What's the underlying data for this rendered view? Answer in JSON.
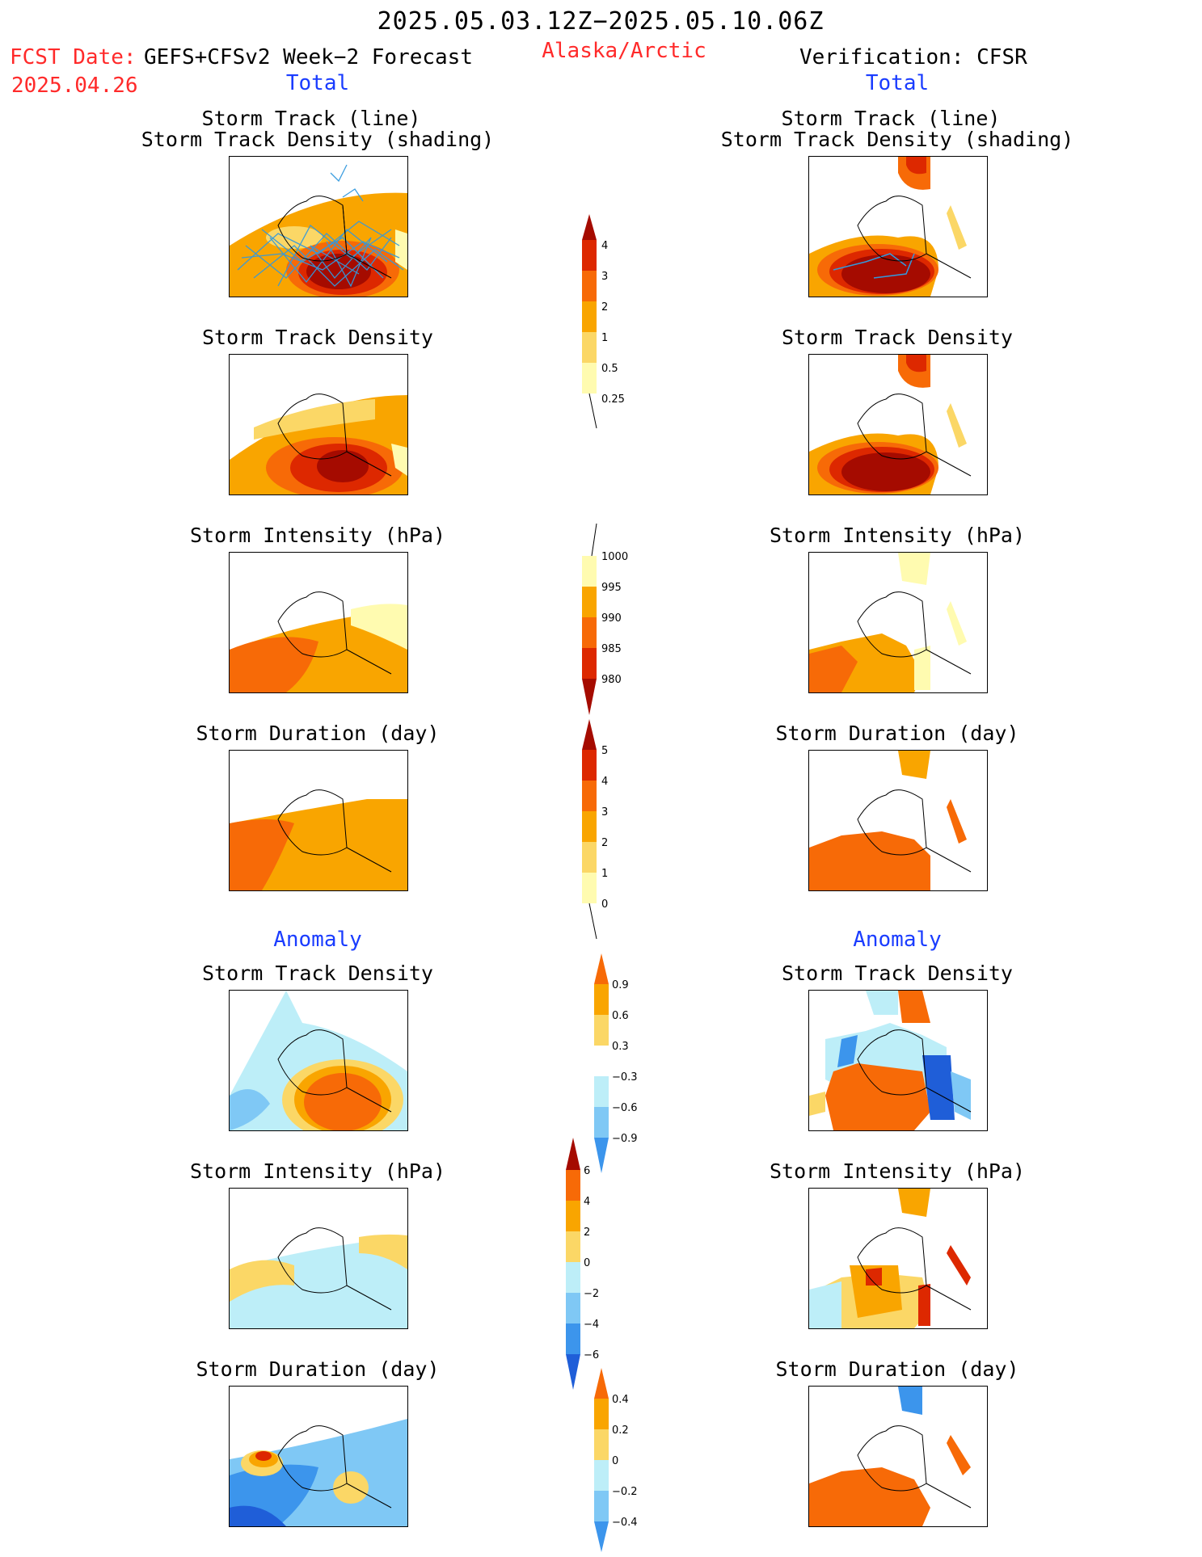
{
  "header": {
    "title": "2025.05.03.12Z−2025.05.10.06Z",
    "fcst_label": "FCST Date:",
    "forecast_name": "GEFS+CFSv2 Week−2 Forecast",
    "fcst_date": "2025.04.26",
    "region": "Alaska/Arctic",
    "verification": "Verification: CFSR",
    "left_total": "Total",
    "right_total": "Total",
    "left_anomaly": "Anomaly",
    "right_anomaly": "Anomaly"
  },
  "panels": {
    "p1_line1": "Storm Track (line)",
    "p1_line2": "Storm Track Density (shading)",
    "density": "Storm Track Density",
    "intensity": "Storm Intensity (hPa)",
    "duration": "Storm Duration (day)"
  },
  "colorbars": {
    "track_density": [
      "4",
      "3",
      "2",
      "1",
      "0.5",
      "0.25"
    ],
    "intensity": [
      "1000",
      "995",
      "990",
      "985",
      "980"
    ],
    "duration": [
      "5",
      "4",
      "3",
      "2",
      "1",
      "0"
    ],
    "anom_density": [
      "0.9",
      "0.6",
      "0.3",
      "−0.3",
      "−0.6",
      "−0.9"
    ],
    "anom_intensity": [
      "6",
      "4",
      "2",
      "0",
      "−2",
      "−4",
      "−6"
    ],
    "anom_duration": [
      "0.4",
      "0.2",
      "0",
      "−0.2",
      "−0.4"
    ]
  },
  "colors": {
    "warm": [
      "#fffbb0",
      "#fbd766",
      "#f9a500",
      "#f76a07",
      "#dd2800",
      "#a50b00"
    ],
    "cool": [
      "#bdeef8",
      "#7fc8f5",
      "#3c95ec",
      "#1f5ed8"
    ],
    "title_red": "#ff2a2a",
    "title_blue": "#1a3cff"
  }
}
